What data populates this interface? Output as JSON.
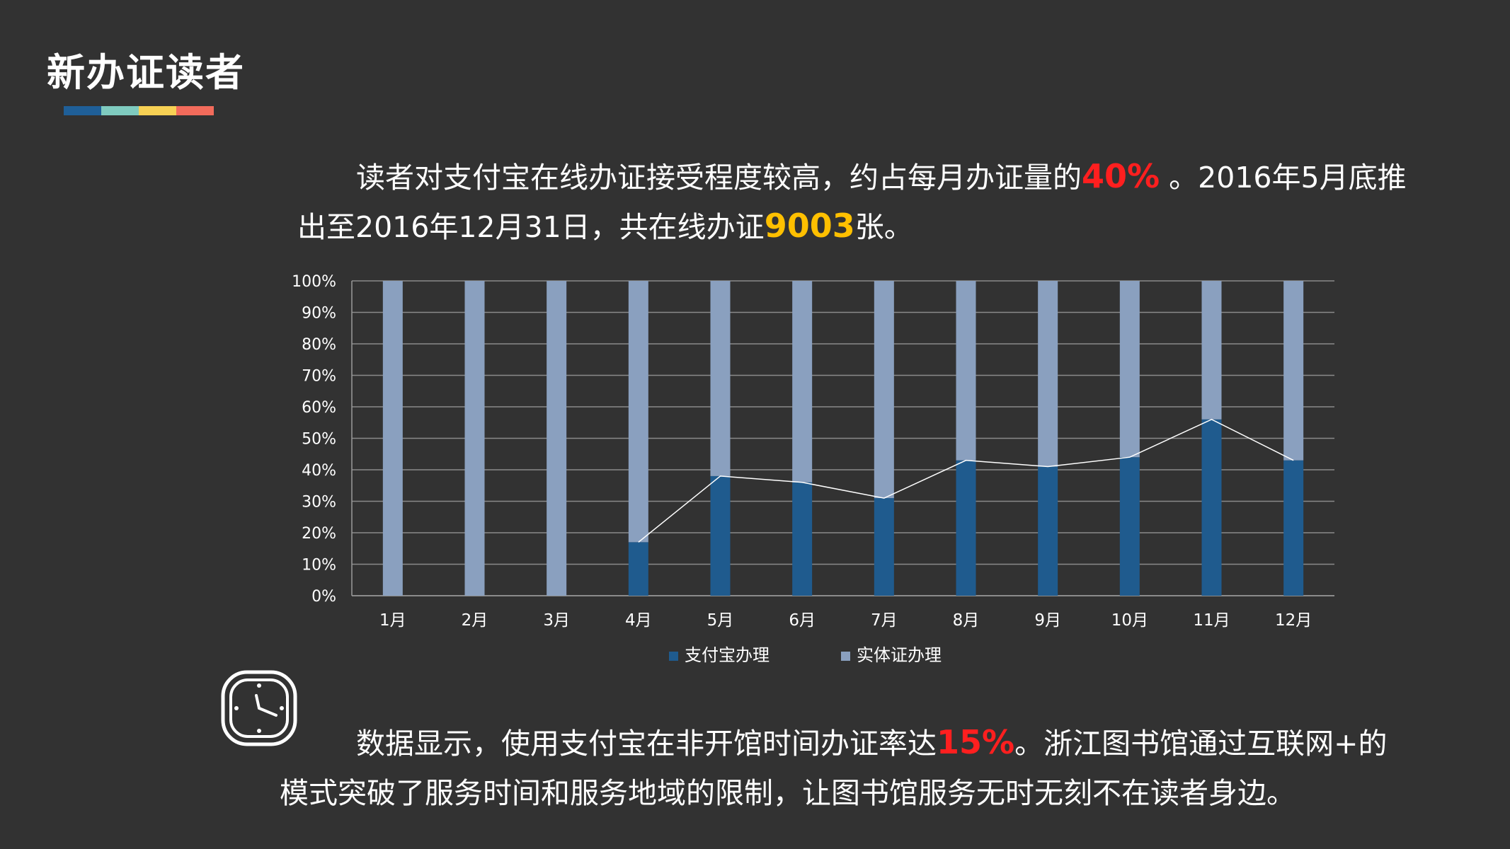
{
  "title": "新办证读者",
  "colors": {
    "background": "#323232",
    "accent_bar": [
      "#1f5f98",
      "#7fcbbf",
      "#f7d154",
      "#f26b5b"
    ],
    "alipay": "#1f5b8e",
    "physical": "#8aa0bf",
    "highlight_red": "#ff1f1f",
    "highlight_yellow": "#ffc000"
  },
  "paragraph1": {
    "line1_pre": "读者对支付宝在线办证接受程度较高，约占每月办证量的",
    "line1_highlight": "40%",
    "line1_post": " 。2016年5月底推",
    "line2_pre": "出至2016年12月31日，共在线办证",
    "line2_highlight": "9003",
    "line2_post": "张。"
  },
  "paragraph2": {
    "line1_pre": "数据显示，使用支付宝在非开馆时间办证率达",
    "line1_highlight": "15%",
    "line1_post": "。浙江图书馆通过互联网+的",
    "line2": "模式突破了服务时间和服务地域的限制，让图书馆服务无时无刻不在读者身边。"
  },
  "icons": [
    "clock-icon"
  ],
  "chart_data": {
    "type": "bar",
    "stacked": "percent",
    "categories": [
      "1月",
      "2月",
      "3月",
      "4月",
      "5月",
      "6月",
      "7月",
      "8月",
      "9月",
      "10月",
      "11月",
      "12月"
    ],
    "series": [
      {
        "name": "支付宝办理",
        "values": [
          0,
          0,
          0,
          17,
          38,
          36,
          31,
          43,
          41,
          44,
          56,
          43
        ]
      },
      {
        "name": "实体证办理",
        "values": [
          100,
          100,
          100,
          83,
          62,
          64,
          69,
          57,
          59,
          56,
          44,
          57
        ]
      }
    ],
    "trend_line": {
      "of_series": "支付宝办理",
      "from_category": "4月"
    },
    "y_ticks": [
      "0%",
      "10%",
      "20%",
      "30%",
      "40%",
      "50%",
      "60%",
      "70%",
      "80%",
      "90%",
      "100%"
    ],
    "ylim": [
      0,
      100
    ],
    "grid": true,
    "legend": "bottom"
  }
}
